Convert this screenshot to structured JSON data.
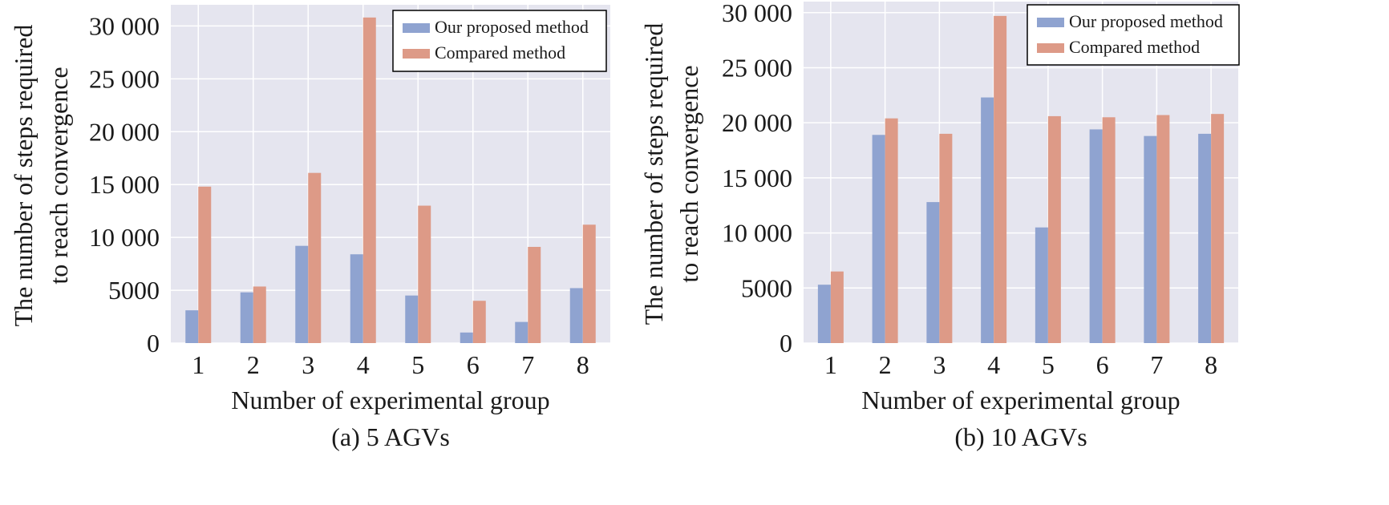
{
  "colors": {
    "plot_bg": "#e5e5ef",
    "grid": "#ffffff",
    "series_ours": "#8fa3d0",
    "series_compared": "#dd9a87",
    "text": "#1a1a1a",
    "legend_border": "#000000"
  },
  "chart_data": [
    {
      "type": "bar",
      "caption": "(a) 5 AGVs",
      "xlabel": "Number of experimental group",
      "ylabel": "The number of steps required to reach convergence",
      "ylabel_lines": [
        "The number of steps required",
        "to reach convergence"
      ],
      "ylim": [
        0,
        32000
      ],
      "yticks": [
        0,
        5000,
        10000,
        15000,
        20000,
        25000,
        30000
      ],
      "ytick_labels": [
        "0",
        "5000",
        "10 000",
        "15 000",
        "20 000",
        "25 000",
        "30 000"
      ],
      "categories": [
        "1",
        "2",
        "3",
        "4",
        "5",
        "6",
        "7",
        "8"
      ],
      "grid": true,
      "legend_position": "top-right",
      "series": [
        {
          "name": "Our proposed method",
          "values": [
            3100,
            4800,
            9200,
            8400,
            4500,
            1000,
            2000,
            5200
          ]
        },
        {
          "name": "Compared method",
          "values": [
            14800,
            5350,
            16100,
            30800,
            13000,
            4000,
            9100,
            11200
          ]
        }
      ]
    },
    {
      "type": "bar",
      "caption": "(b) 10 AGVs",
      "xlabel": "Number of experimental group",
      "ylabel": "The number of steps required to reach convergence",
      "ylabel_lines": [
        "The number of steps required",
        "to reach convergence"
      ],
      "ylim": [
        0,
        31000
      ],
      "yticks": [
        0,
        5000,
        10000,
        15000,
        20000,
        25000,
        30000
      ],
      "ytick_labels": [
        "0",
        "5000",
        "10 000",
        "15 000",
        "20 000",
        "25 000",
        "30 000"
      ],
      "categories": [
        "1",
        "2",
        "3",
        "4",
        "5",
        "6",
        "7",
        "8"
      ],
      "grid": true,
      "legend_position": "top-right",
      "series": [
        {
          "name": "Our proposed method",
          "values": [
            5300,
            18900,
            12800,
            22300,
            10500,
            19400,
            18800,
            19000
          ]
        },
        {
          "name": "Compared method",
          "values": [
            6500,
            20400,
            19000,
            29700,
            20600,
            20500,
            20700,
            20800
          ]
        }
      ]
    }
  ]
}
